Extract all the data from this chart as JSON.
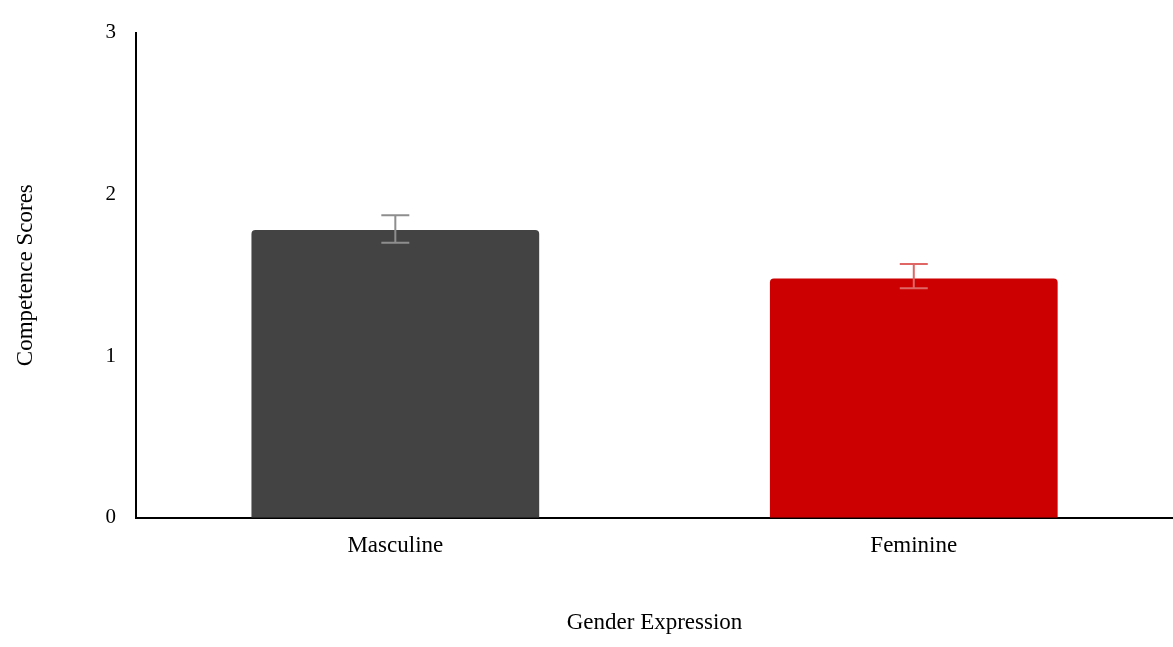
{
  "chart_data": {
    "type": "bar",
    "xlabel": "Gender Expression",
    "ylabel": "Competence Scores",
    "categories": [
      "Masculine",
      "Feminine"
    ],
    "values": [
      1.78,
      1.48
    ],
    "colors": [
      "#434343",
      "#cc0000"
    ],
    "errors": [
      [
        1.7,
        1.87
      ],
      [
        1.42,
        1.57
      ]
    ],
    "ylim": [
      0,
      3
    ],
    "yticks": [
      0,
      1,
      2,
      3
    ],
    "grid": false,
    "legend": false
  }
}
